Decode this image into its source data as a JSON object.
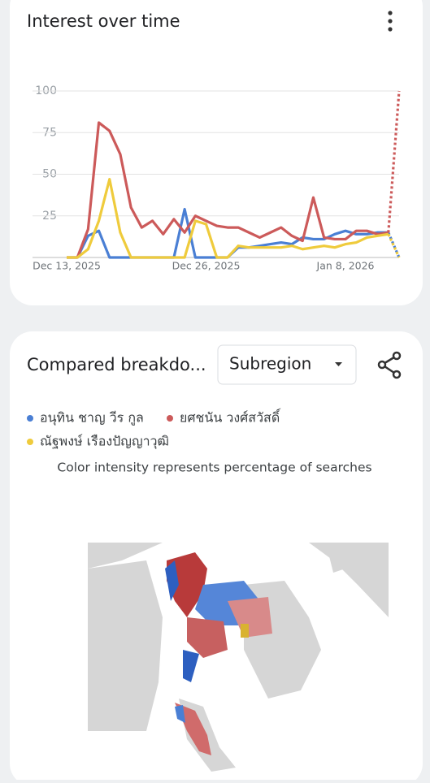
{
  "chart_data": {
    "type": "line",
    "title": "Interest over time",
    "categories": [
      "Dec 13, 2025",
      null,
      null,
      null,
      null,
      null,
      null,
      null,
      null,
      null,
      null,
      null,
      null,
      "Dec 26, 2025",
      null,
      null,
      null,
      null,
      null,
      null,
      null,
      null,
      null,
      null,
      null,
      null,
      "Jan 8, 2026",
      null,
      null,
      null,
      null,
      null
    ],
    "series": [
      {
        "name": "อนุทิน ชาญ วีร กูล",
        "color": "#4a7fd4",
        "values": [
          0,
          0,
          13,
          16,
          0,
          0,
          0,
          0,
          0,
          0,
          0,
          29,
          0,
          0,
          0,
          0,
          6,
          6,
          7,
          8,
          9,
          8,
          12,
          11,
          11,
          14,
          16,
          14,
          14,
          15,
          15,
          0
        ]
      },
      {
        "name": "ยศชนัน วงศ์สวัสดิ์",
        "color": "#cc5a5a",
        "values": [
          0,
          0,
          17,
          81,
          76,
          62,
          30,
          18,
          22,
          14,
          23,
          15,
          25,
          22,
          19,
          18,
          18,
          15,
          12,
          15,
          18,
          13,
          10,
          36,
          12,
          11,
          11,
          16,
          16,
          14,
          15,
          100
        ]
      },
      {
        "name": "ณัฐพงษ์ เรืองปัญญาวุฒิ",
        "color": "#efcb3c",
        "values": [
          0,
          0,
          5,
          22,
          47,
          15,
          0,
          0,
          0,
          0,
          0,
          0,
          22,
          20,
          0,
          0,
          7,
          6,
          6,
          6,
          6,
          7,
          5,
          6,
          7,
          6,
          8,
          9,
          12,
          13,
          14,
          0
        ]
      }
    ],
    "ylim": [
      0,
      100
    ],
    "yticks": [
      25,
      50,
      75,
      100
    ],
    "grid": true
  },
  "breakdown": {
    "title": "Compared breakdo...",
    "dropdown": "Subregion",
    "note": "Color intensity represents percentage of searches"
  }
}
